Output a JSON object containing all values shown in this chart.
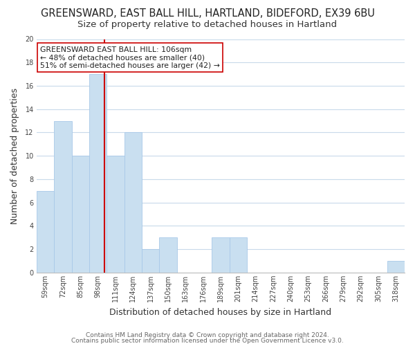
{
  "title1": "GREENSWARD, EAST BALL HILL, HARTLAND, BIDEFORD, EX39 6BU",
  "title2": "Size of property relative to detached houses in Hartland",
  "xlabel": "Distribution of detached houses by size in Hartland",
  "ylabel": "Number of detached properties",
  "bar_labels": [
    "59sqm",
    "72sqm",
    "85sqm",
    "98sqm",
    "111sqm",
    "124sqm",
    "137sqm",
    "150sqm",
    "163sqm",
    "176sqm",
    "189sqm",
    "201sqm",
    "214sqm",
    "227sqm",
    "240sqm",
    "253sqm",
    "266sqm",
    "279sqm",
    "292sqm",
    "305sqm",
    "318sqm"
  ],
  "bar_values": [
    7,
    13,
    10,
    17,
    10,
    12,
    2,
    3,
    0,
    0,
    3,
    3,
    0,
    0,
    0,
    0,
    0,
    0,
    0,
    0,
    1
  ],
  "bar_color": "#c9dff0",
  "bar_edge_color": "#a8c8e8",
  "grid_color": "#c8daea",
  "vline_color": "#cc0000",
  "vline_x": 3.38,
  "ylim": [
    0,
    20
  ],
  "yticks": [
    0,
    2,
    4,
    6,
    8,
    10,
    12,
    14,
    16,
    18,
    20
  ],
  "annotation_text": "GREENSWARD EAST BALL HILL: 106sqm\n← 48% of detached houses are smaller (40)\n51% of semi-detached houses are larger (42) →",
  "annotation_box_color": "#ffffff",
  "annotation_box_edge": "#cc0000",
  "footer1": "Contains HM Land Registry data © Crown copyright and database right 2024.",
  "footer2": "Contains public sector information licensed under the Open Government Licence v3.0.",
  "title_fontsize": 10.5,
  "subtitle_fontsize": 9.5,
  "axis_label_fontsize": 9,
  "tick_fontsize": 7,
  "annotation_fontsize": 7.8,
  "footer_fontsize": 6.5
}
